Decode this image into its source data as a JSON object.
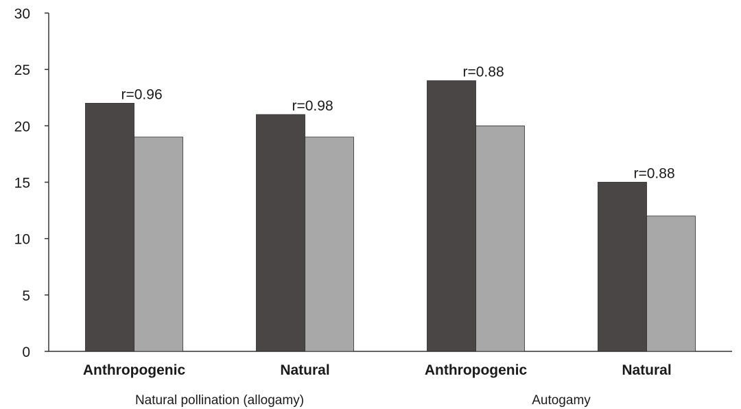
{
  "chart_data": {
    "type": "bar",
    "title": "",
    "xlabel": "",
    "ylabel": "",
    "ylim": [
      0,
      30
    ],
    "yticks": [
      0,
      5,
      10,
      15,
      20,
      25,
      30
    ],
    "grid": false,
    "legend": "none",
    "categories": [
      "Anthropogenic",
      "Natural",
      "Anthropogenic",
      "Natural"
    ],
    "groups": [
      {
        "label": "Natural pollination (allogamy)",
        "categories": [
          0,
          1
        ]
      },
      {
        "label": "Autogamy",
        "categories": [
          2,
          3
        ]
      }
    ],
    "series": [
      {
        "color": "#4a4646",
        "values": [
          22,
          21,
          24,
          15
        ]
      },
      {
        "color": "#a8a8a8",
        "values": [
          19,
          19,
          20,
          12
        ]
      }
    ],
    "annotations": [
      "r=0.96",
      "r=0.98",
      "r=0.88",
      "r=0.88"
    ]
  }
}
